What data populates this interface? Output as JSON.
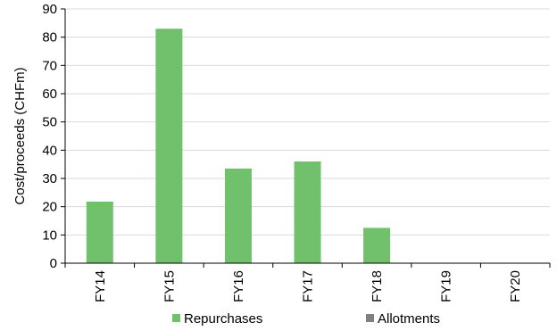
{
  "chart_data": {
    "type": "bar",
    "title": "",
    "xlabel": "",
    "ylabel": "Cost/proceeds (CHFm)",
    "ylim": [
      0,
      90
    ],
    "yticks": [
      0,
      10,
      20,
      30,
      40,
      50,
      60,
      70,
      80,
      90
    ],
    "grid": true,
    "legend_position": "bottom",
    "categories": [
      "FY14",
      "FY15",
      "FY16",
      "FY17",
      "FY18",
      "FY19",
      "FY20"
    ],
    "series": [
      {
        "name": "Repurchases",
        "color": "#70c06c",
        "values": [
          21.8,
          83,
          33.5,
          36,
          12.5,
          0,
          0
        ]
      },
      {
        "name": "Allotments",
        "color": "#808080",
        "values": [
          0,
          0,
          0,
          0,
          0,
          0,
          0
        ]
      }
    ]
  }
}
